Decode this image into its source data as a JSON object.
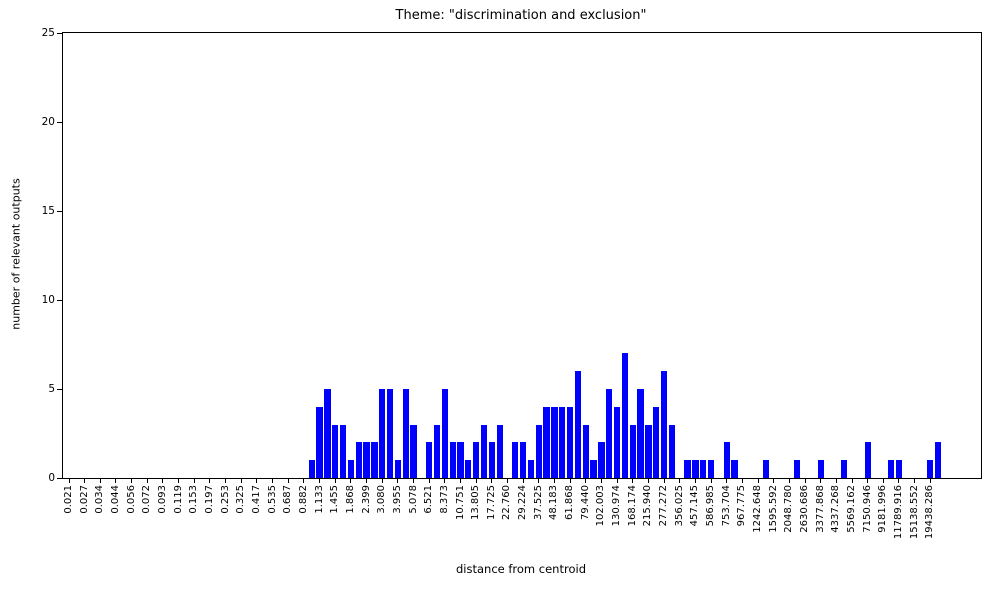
{
  "figure": {
    "title": "Theme: \"discrimination and exclusion\"",
    "xlabel": "distance from centroid",
    "ylabel": "number of relevant outputs"
  },
  "chart_data": {
    "type": "bar",
    "title": "Theme: \"discrimination and exclusion\"",
    "xlabel": "distance from centroid",
    "ylabel": "number of relevant outputs",
    "ylim": [
      0,
      25
    ],
    "yticks": [
      0,
      5,
      10,
      15,
      20,
      25
    ],
    "grid": false,
    "legend": null,
    "bar_color": "#0000ff",
    "x_scale_note": "log-spaced bins; tick labels mark every other bar slot",
    "x_tick_labels": [
      "0.021",
      "0.027",
      "0.034",
      "0.044",
      "0.056",
      "0.072",
      "0.093",
      "0.119",
      "0.153",
      "0.197",
      "0.253",
      "0.325",
      "0.417",
      "0.535",
      "0.687",
      "0.882",
      "1.133",
      "1.455",
      "1.868",
      "2.399",
      "3.080",
      "3.955",
      "5.078",
      "6.521",
      "8.373",
      "10.751",
      "13.805",
      "17.725",
      "22.760",
      "29.224",
      "37.525",
      "48.183",
      "61.868",
      "79.440",
      "102.003",
      "130.974",
      "168.174",
      "215.940",
      "277.272",
      "356.025",
      "457.145",
      "586.985",
      "753.704",
      "967.775",
      "1242.648",
      "1595.592",
      "2048.780",
      "2630.686",
      "3377.868",
      "4337.268",
      "5569.162",
      "7150.946",
      "9181.996",
      "11789.916",
      "15138.552",
      "19438.286"
    ],
    "n_slots": 112,
    "label_slot_stride": 2,
    "values": [
      0,
      0,
      0,
      0,
      0,
      0,
      0,
      0,
      0,
      0,
      0,
      0,
      0,
      0,
      0,
      0,
      0,
      0,
      0,
      0,
      0,
      0,
      0,
      0,
      0,
      0,
      0,
      0,
      0,
      0,
      0,
      1,
      4,
      5,
      3,
      3,
      1,
      2,
      2,
      2,
      5,
      5,
      1,
      5,
      3,
      0,
      2,
      3,
      5,
      2,
      2,
      1,
      2,
      3,
      2,
      3,
      0,
      2,
      2,
      1,
      3,
      4,
      4,
      4,
      4,
      6,
      3,
      1,
      2,
      5,
      4,
      7,
      3,
      5,
      3,
      4,
      6,
      3,
      0,
      1,
      1,
      1,
      1,
      0,
      2,
      1,
      0,
      0,
      0,
      1,
      0,
      0,
      0,
      1,
      0,
      0,
      1,
      0,
      0,
      1,
      0,
      0,
      2,
      0,
      0,
      1,
      1,
      0,
      0,
      0,
      1,
      2
    ]
  }
}
